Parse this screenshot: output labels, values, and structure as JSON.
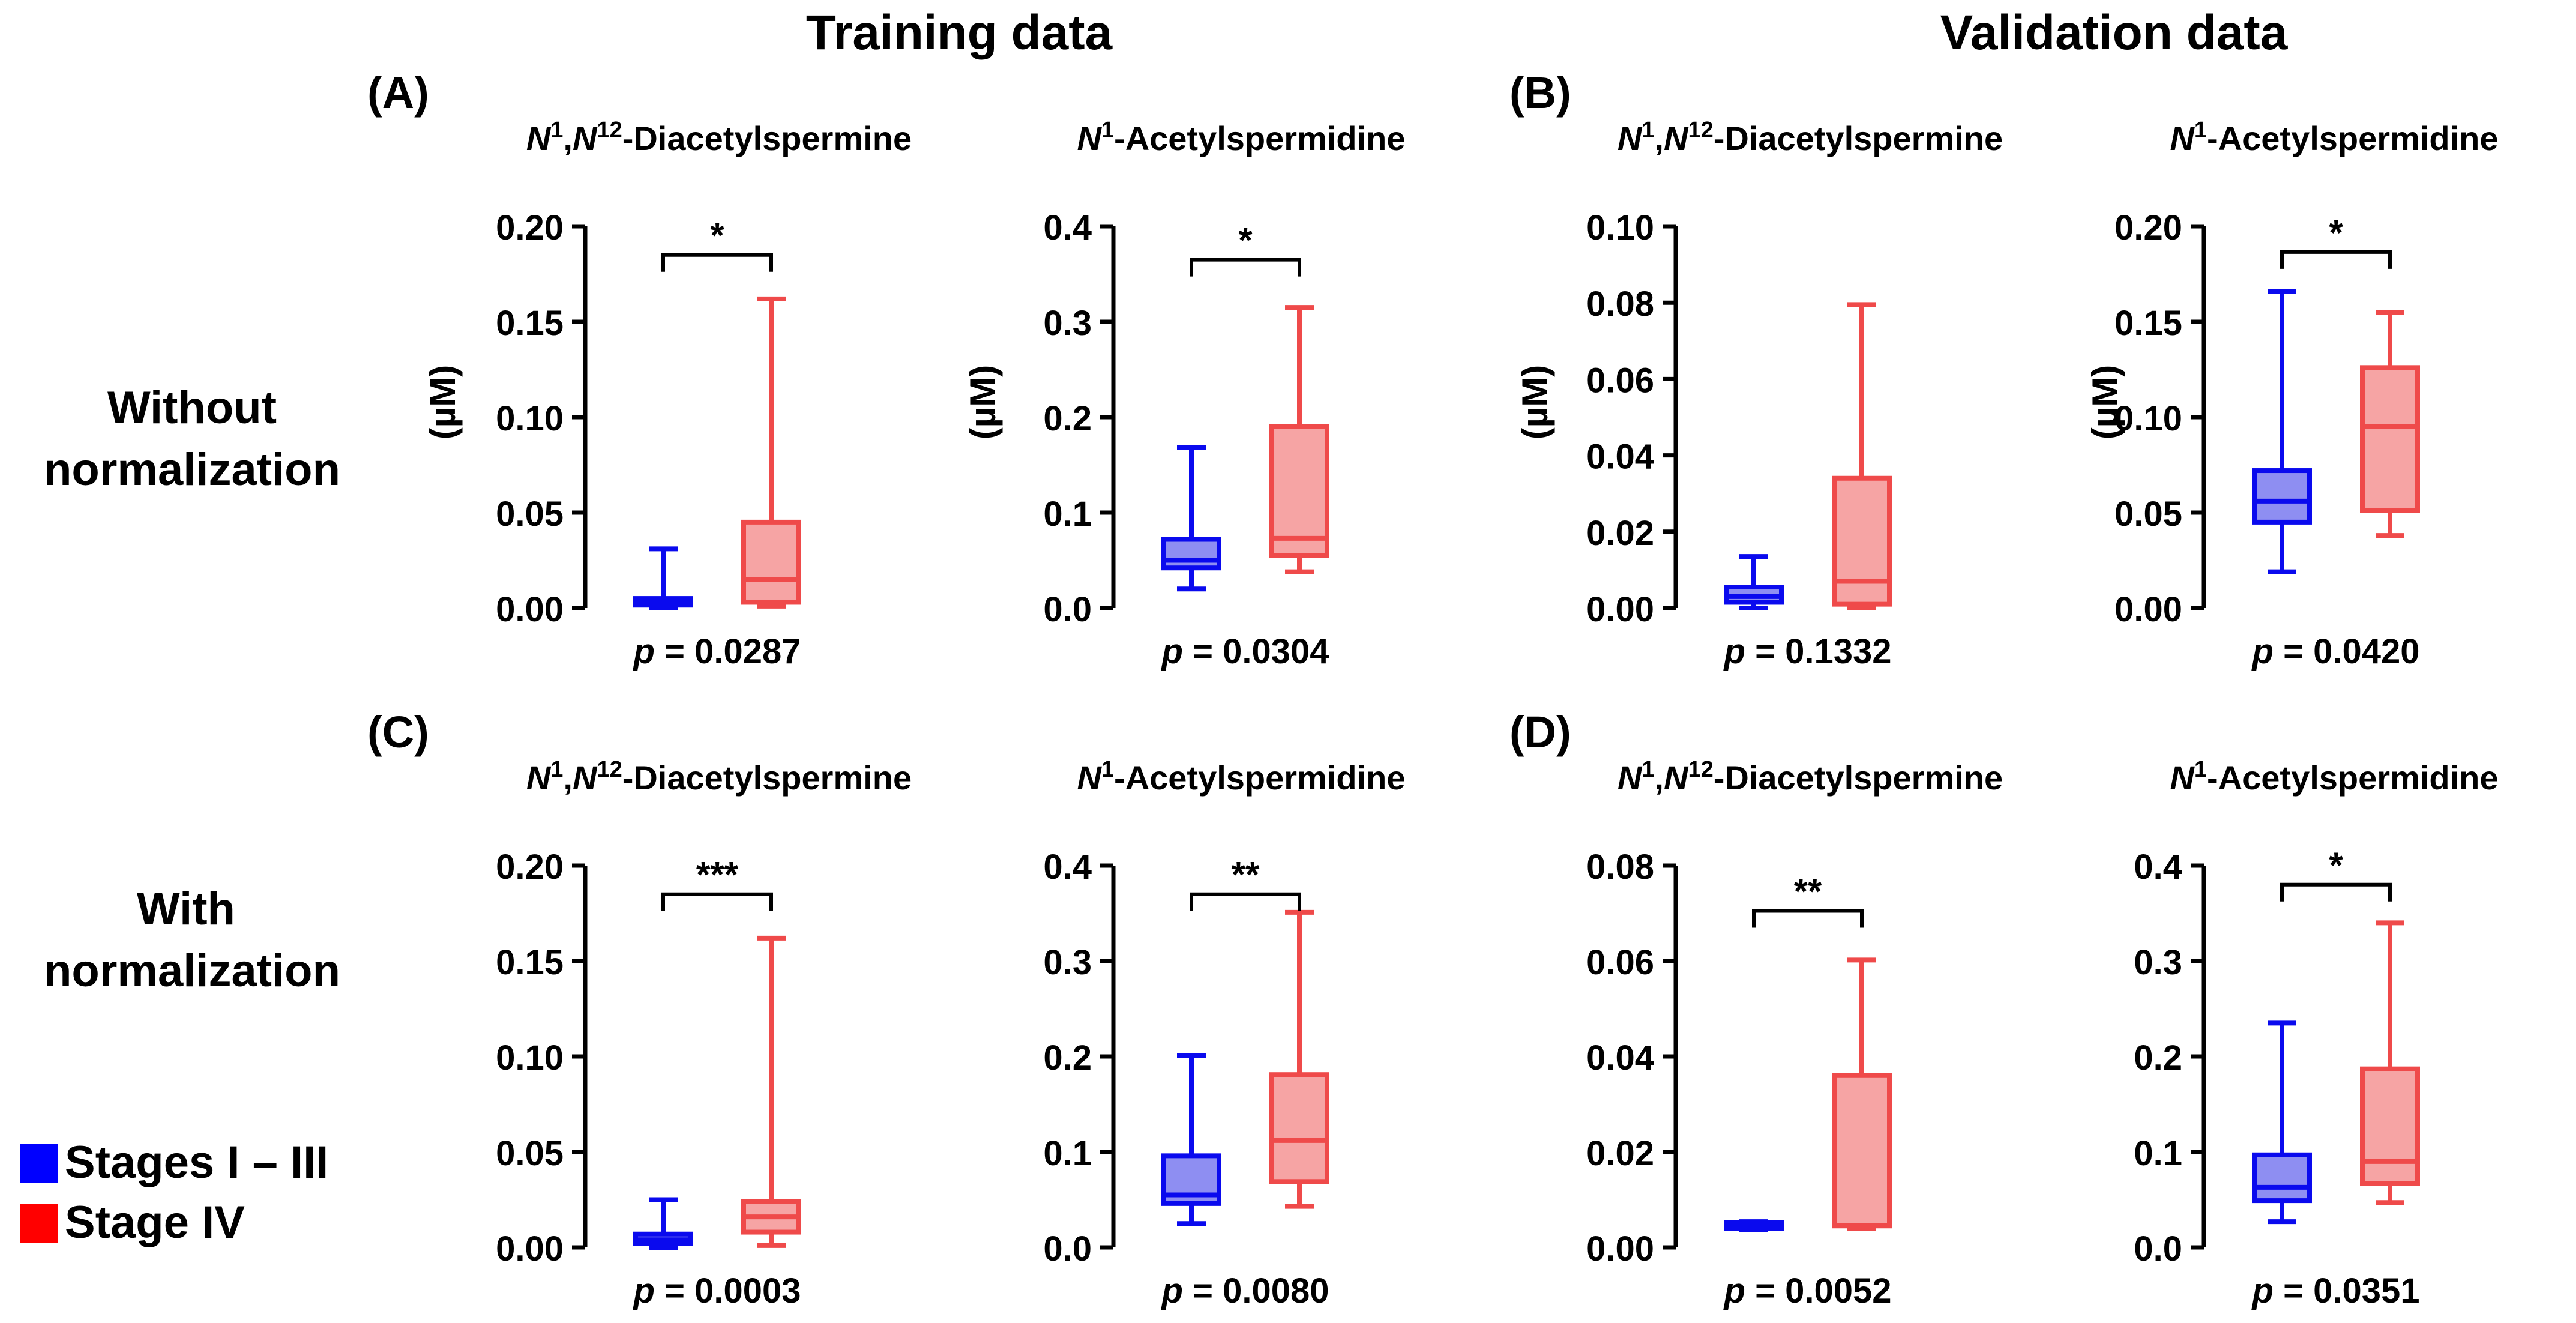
{
  "header": {
    "training": "Training data",
    "validation": "Validation data"
  },
  "rows": {
    "without": [
      "Without",
      "normalization"
    ],
    "with": [
      "With",
      "normalization"
    ]
  },
  "legend": [
    {
      "label": "Stages I – III",
      "color": "#0000FF"
    },
    {
      "label": "Stage IV",
      "color": "#FF0000"
    }
  ],
  "colors": {
    "group1_stroke": "#0a0aee",
    "group1_fill": "#8e8ef2",
    "group2_stroke": "#ef4a4a",
    "group2_fill": "#f6a4a4"
  },
  "chart_data": [
    {
      "type": "box",
      "panel": "(A)",
      "title": [
        "N",
        "1",
        ",",
        "N",
        "12",
        "-Diacetylspermine"
      ],
      "ylabel": "(µM)",
      "ylim": [
        0,
        0.2
      ],
      "ticks": [
        "0.00",
        "0.05",
        "0.10",
        "0.15",
        "0.20"
      ],
      "boxes": [
        {
          "group": "Stages I – III",
          "min": 0.0,
          "q1": 0.0015,
          "median": 0.003,
          "q3": 0.005,
          "max": 0.031
        },
        {
          "group": "Stage IV",
          "min": 0.001,
          "q1": 0.003,
          "median": 0.015,
          "q3": 0.045,
          "max": 0.162
        }
      ],
      "sig": "*",
      "sig_y": 0.185,
      "p_label": "p",
      "p_text": " = 0.0287"
    },
    {
      "type": "box",
      "panel": "",
      "title": [
        "N",
        "1",
        "",
        "",
        "",
        "-Acetylspermidine"
      ],
      "ylabel": "(µM)",
      "ylim": [
        0,
        0.4
      ],
      "ticks": [
        "0.0",
        "0.1",
        "0.2",
        "0.3",
        "0.4"
      ],
      "boxes": [
        {
          "group": "Stages I – III",
          "min": 0.02,
          "q1": 0.042,
          "median": 0.05,
          "q3": 0.072,
          "max": 0.168
        },
        {
          "group": "Stage IV",
          "min": 0.038,
          "q1": 0.055,
          "median": 0.073,
          "q3": 0.19,
          "max": 0.315
        }
      ],
      "sig": "*",
      "sig_y": 0.365,
      "p_label": "p",
      "p_text": " = 0.0304"
    },
    {
      "type": "box",
      "panel": "(B)",
      "title": [
        "N",
        "1",
        ",",
        "N",
        "12",
        "-Diacetylspermine"
      ],
      "ylabel": "(µM)",
      "ylim": [
        0,
        0.1
      ],
      "ticks": [
        "0.00",
        "0.02",
        "0.04",
        "0.06",
        "0.08",
        "0.10"
      ],
      "boxes": [
        {
          "group": "Stages I – III",
          "min": 0.0,
          "q1": 0.0015,
          "median": 0.003,
          "q3": 0.0055,
          "max": 0.0135
        },
        {
          "group": "Stage IV",
          "min": 0.0,
          "q1": 0.001,
          "median": 0.007,
          "q3": 0.034,
          "max": 0.0795
        }
      ],
      "sig": "",
      "sig_y": 0.0,
      "p_label": "p",
      "p_text": " = 0.1332"
    },
    {
      "type": "box",
      "panel": "",
      "title": [
        "N",
        "1",
        "",
        "",
        "",
        "-Acetylspermidine"
      ],
      "ylabel": "(µM)",
      "ylim": [
        0,
        0.2
      ],
      "ticks": [
        "0.00",
        "0.05",
        "0.10",
        "0.15",
        "0.20"
      ],
      "boxes": [
        {
          "group": "Stages I – III",
          "min": 0.019,
          "q1": 0.045,
          "median": 0.056,
          "q3": 0.072,
          "max": 0.166
        },
        {
          "group": "Stage IV",
          "min": 0.038,
          "q1": 0.051,
          "median": 0.095,
          "q3": 0.126,
          "max": 0.155
        }
      ],
      "sig": "*",
      "sig_y": 0.1865,
      "p_label": "p",
      "p_text": " = 0.0420"
    },
    {
      "type": "box",
      "panel": "(C)",
      "title": [
        "N",
        "1",
        ",",
        "N",
        "12",
        "-Diacetylspermine"
      ],
      "ylabel": "",
      "ylim": [
        0,
        0.2
      ],
      "ticks": [
        "0.00",
        "0.05",
        "0.10",
        "0.15",
        "0.20"
      ],
      "boxes": [
        {
          "group": "Stages I – III",
          "min": 0.0,
          "q1": 0.002,
          "median": 0.004,
          "q3": 0.007,
          "max": 0.025
        },
        {
          "group": "Stage IV",
          "min": 0.001,
          "q1": 0.008,
          "median": 0.016,
          "q3": 0.024,
          "max": 0.162
        }
      ],
      "sig": "***",
      "sig_y": 0.185,
      "p_label": "p",
      "p_text": " = 0.0003"
    },
    {
      "type": "box",
      "panel": "",
      "title": [
        "N",
        "1",
        "",
        "",
        "",
        "-Acetylspermidine"
      ],
      "ylabel": "",
      "ylim": [
        0,
        0.4
      ],
      "ticks": [
        "0.0",
        "0.1",
        "0.2",
        "0.3",
        "0.4"
      ],
      "boxes": [
        {
          "group": "Stages I – III",
          "min": 0.025,
          "q1": 0.046,
          "median": 0.055,
          "q3": 0.096,
          "max": 0.201
        },
        {
          "group": "Stage IV",
          "min": 0.043,
          "q1": 0.069,
          "median": 0.112,
          "q3": 0.181,
          "max": 0.351
        }
      ],
      "sig": "**",
      "sig_y": 0.37,
      "p_label": "p",
      "p_text": " = 0.0080"
    },
    {
      "type": "box",
      "panel": "(D)",
      "title": [
        "N",
        "1",
        ",",
        "N",
        "12",
        "-Diacetylspermine"
      ],
      "ylabel": "",
      "ylim": [
        0,
        0.08
      ],
      "ticks": [
        "0.00",
        "0.02",
        "0.04",
        "0.06",
        "0.08"
      ],
      "boxes": [
        {
          "group": "Stages I – III",
          "min": 0.0037,
          "q1": 0.0039,
          "median": 0.0044,
          "q3": 0.0052,
          "max": 0.0054
        },
        {
          "group": "Stage IV",
          "min": 0.004,
          "q1": 0.0045,
          "median": 0.0046,
          "q3": 0.036,
          "max": 0.0602
        }
      ],
      "sig": "**",
      "sig_y": 0.0705,
      "p_label": "p",
      "p_text": " = 0.0052"
    },
    {
      "type": "box",
      "panel": "",
      "title": [
        "N",
        "1",
        "",
        "",
        "",
        "-Acetylspermidine"
      ],
      "ylabel": "",
      "ylim": [
        0,
        0.4
      ],
      "ticks": [
        "0.0",
        "0.1",
        "0.2",
        "0.3",
        "0.4"
      ],
      "boxes": [
        {
          "group": "Stages I – III",
          "min": 0.027,
          "q1": 0.049,
          "median": 0.063,
          "q3": 0.097,
          "max": 0.235
        },
        {
          "group": "Stage IV",
          "min": 0.047,
          "q1": 0.067,
          "median": 0.09,
          "q3": 0.187,
          "max": 0.34
        }
      ],
      "sig": "*",
      "sig_y": 0.38,
      "p_label": "p",
      "p_text": " = 0.0351"
    }
  ]
}
